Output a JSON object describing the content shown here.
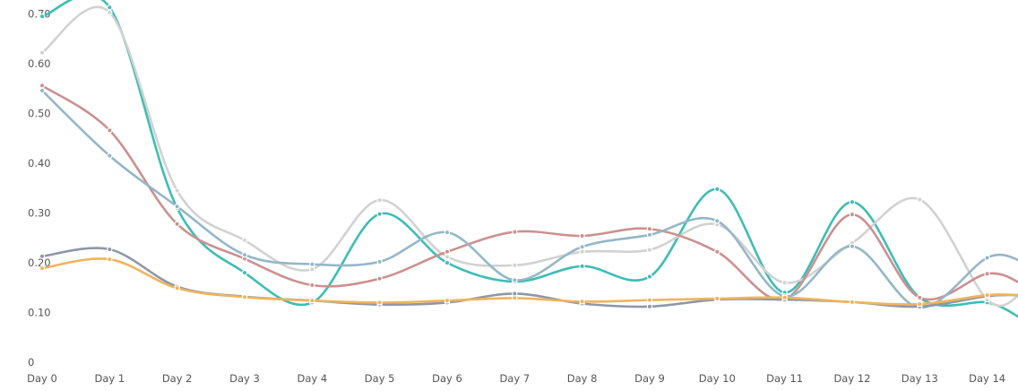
{
  "chart_data": {
    "type": "line",
    "title": "",
    "xlabel": "",
    "ylabel": "",
    "categories": [
      "Day 0",
      "Day 1",
      "Day 2",
      "Day 3",
      "Day 4",
      "Day 5",
      "Day 6",
      "Day 7",
      "Day 8",
      "Day 9",
      "Day 10",
      "Day 11",
      "Day 12",
      "Day 13",
      "Day 14"
    ],
    "y_ticks": [
      "0",
      "0.10",
      "0.20",
      "0.30",
      "0.40",
      "0.50",
      "0.60",
      "0.70"
    ],
    "ylim": [
      0,
      0.73
    ],
    "grid": false,
    "legend": "none",
    "smooth": true,
    "series": [
      {
        "color": "#3dbdb6",
        "values": [
          0.695,
          0.713,
          0.31,
          0.18,
          0.12,
          0.298,
          0.2,
          0.162,
          0.193,
          0.172,
          0.348,
          0.14,
          0.322,
          0.13,
          0.12
        ],
        "end_value": 0.09
      },
      {
        "color": "#d2d2d2",
        "values": [
          0.622,
          0.703,
          0.345,
          0.245,
          0.187,
          0.326,
          0.212,
          0.195,
          0.222,
          0.226,
          0.277,
          0.16,
          0.24,
          0.327,
          0.126
        ],
        "end_value": 0.135
      },
      {
        "color": "#cc9090",
        "values": [
          0.556,
          0.466,
          0.278,
          0.208,
          0.155,
          0.168,
          0.222,
          0.262,
          0.254,
          0.268,
          0.222,
          0.127,
          0.297,
          0.13,
          0.178
        ],
        "end_value": 0.16
      },
      {
        "color": "#94b7c8",
        "values": [
          0.546,
          0.415,
          0.313,
          0.216,
          0.197,
          0.202,
          0.261,
          0.165,
          0.232,
          0.256,
          0.284,
          0.133,
          0.233,
          0.11,
          0.21
        ],
        "end_value": 0.205
      },
      {
        "color": "#8e97a8",
        "values": [
          0.213,
          0.227,
          0.152,
          0.132,
          0.124,
          0.116,
          0.12,
          0.138,
          0.118,
          0.112,
          0.126,
          0.126,
          0.121,
          0.112,
          0.133
        ],
        "end_value": 0.135
      },
      {
        "color": "#f0b45c",
        "values": [
          0.189,
          0.207,
          0.149,
          0.131,
          0.124,
          0.12,
          0.124,
          0.129,
          0.122,
          0.125,
          0.128,
          0.13,
          0.121,
          0.117,
          0.135
        ],
        "end_value": 0.135
      }
    ]
  }
}
